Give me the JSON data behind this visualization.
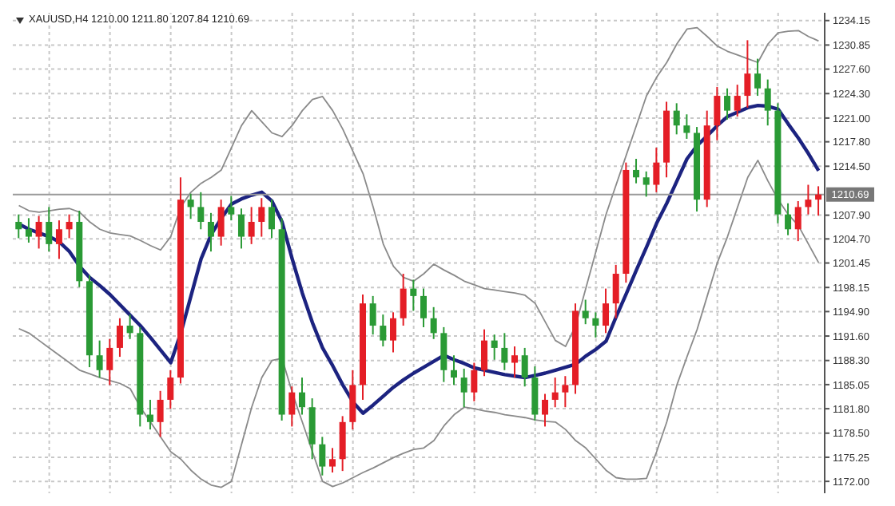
{
  "chart_data": {
    "type": "candlestick",
    "title": "XAUUSD,H4 1210.00 1211.80 1207.84 1210.69",
    "categories": [
      null,
      null,
      null,
      null,
      null,
      null,
      null,
      null,
      null,
      null,
      null,
      null,
      null,
      null,
      null,
      null,
      null,
      null,
      null,
      null,
      null,
      null,
      null,
      null,
      null,
      null,
      null,
      null,
      null,
      null,
      null,
      null,
      null,
      null,
      null,
      null,
      null,
      null,
      null,
      null,
      null,
      null,
      null,
      null,
      null,
      null,
      null,
      null,
      null,
      null,
      null,
      null,
      null,
      null,
      null,
      null,
      null,
      null,
      null,
      null,
      null,
      null,
      null,
      null,
      null,
      null,
      null,
      null,
      null,
      null,
      null,
      null,
      null,
      null,
      null,
      null,
      null,
      null,
      null,
      null
    ],
    "ohlc": [
      [
        1207,
        1208,
        1204.8,
        1206
      ],
      [
        1206,
        1207.5,
        1204.2,
        1205
      ],
      [
        1205,
        1207.8,
        1203.4,
        1207
      ],
      [
        1207,
        1209,
        1203,
        1204
      ],
      [
        1204,
        1207.2,
        1202,
        1206
      ],
      [
        1206,
        1208,
        1204.8,
        1207
      ],
      [
        1207,
        1208.5,
        1198.2,
        1199
      ],
      [
        1199,
        1199.8,
        1187.4,
        1189
      ],
      [
        1189,
        1191,
        1186,
        1187
      ],
      [
        1187,
        1191.2,
        1185,
        1190
      ],
      [
        1190,
        1194,
        1188.8,
        1193
      ],
      [
        1193,
        1194.5,
        1191.2,
        1192
      ],
      [
        1192,
        1192.8,
        1179.4,
        1181
      ],
      [
        1181,
        1183,
        1179,
        1180
      ],
      [
        1180,
        1184.2,
        1178,
        1183
      ],
      [
        1183,
        1187,
        1181.8,
        1186
      ],
      [
        1186,
        1213,
        1185.2,
        1210
      ],
      [
        1210,
        1210.8,
        1207.4,
        1209
      ],
      [
        1209,
        1211,
        1206,
        1207
      ],
      [
        1207,
        1208.2,
        1203,
        1205
      ],
      [
        1205,
        1210,
        1203.8,
        1209
      ],
      [
        1209,
        1210.5,
        1207.2,
        1208
      ],
      [
        1208,
        1208.8,
        1203.4,
        1205
      ],
      [
        1205,
        1209,
        1204,
        1207
      ],
      [
        1207,
        1210.2,
        1205,
        1209
      ],
      [
        1209,
        1210,
        1204.8,
        1206
      ],
      [
        1206,
        1207.5,
        1180.2,
        1181
      ],
      [
        1181,
        1184.8,
        1179.4,
        1184
      ],
      [
        1184,
        1186,
        1181,
        1182
      ],
      [
        1182,
        1183.2,
        1175,
        1177
      ],
      [
        1177,
        1178,
        1172.8,
        1174
      ],
      [
        1174,
        1176.5,
        1173.2,
        1175
      ],
      [
        1175,
        1180.8,
        1173.4,
        1180
      ],
      [
        1180,
        1187,
        1179,
        1185
      ],
      [
        1185,
        1197.2,
        1183,
        1196
      ],
      [
        1196,
        1197,
        1191.8,
        1193
      ],
      [
        1193,
        1194.5,
        1190.2,
        1191
      ],
      [
        1191,
        1194.8,
        1189.4,
        1194
      ],
      [
        1194,
        1200,
        1193,
        1198
      ],
      [
        1198,
        1199.2,
        1195,
        1197
      ],
      [
        1197,
        1198,
        1192.8,
        1194
      ],
      [
        1194,
        1195.5,
        1191.2,
        1192
      ],
      [
        1192,
        1192.8,
        1185.4,
        1187
      ],
      [
        1187,
        1189,
        1185,
        1186
      ],
      [
        1186,
        1187.2,
        1182,
        1184
      ],
      [
        1184,
        1188,
        1182.8,
        1187
      ],
      [
        1187,
        1192.5,
        1186.2,
        1191
      ],
      [
        1191,
        1191.8,
        1188.4,
        1190
      ],
      [
        1190,
        1192,
        1187,
        1188
      ],
      [
        1188,
        1190.2,
        1186,
        1189
      ],
      [
        1189,
        1190,
        1184.8,
        1186
      ],
      [
        1186,
        1187.5,
        1180.2,
        1181
      ],
      [
        1181,
        1183.8,
        1179.4,
        1183
      ],
      [
        1183,
        1186,
        1182,
        1184
      ],
      [
        1184,
        1186.2,
        1182,
        1185
      ],
      [
        1185,
        1196,
        1183.8,
        1195
      ],
      [
        1195,
        1196.5,
        1193.2,
        1194
      ],
      [
        1194,
        1194.8,
        1191.4,
        1193
      ],
      [
        1193,
        1198,
        1192,
        1196
      ],
      [
        1196,
        1201.2,
        1194,
        1200
      ],
      [
        1200,
        1215,
        1198.8,
        1214
      ],
      [
        1214,
        1215.5,
        1212.2,
        1213
      ],
      [
        1213,
        1213.8,
        1210.4,
        1212
      ],
      [
        1212,
        1217,
        1211,
        1215
      ],
      [
        1215,
        1223.2,
        1213,
        1222
      ],
      [
        1222,
        1223,
        1218.8,
        1220
      ],
      [
        1220,
        1221.5,
        1218.2,
        1219
      ],
      [
        1219,
        1219.8,
        1208.4,
        1210
      ],
      [
        1210,
        1222,
        1209,
        1220
      ],
      [
        1220,
        1225.2,
        1218,
        1224
      ],
      [
        1224,
        1225,
        1220.8,
        1222
      ],
      [
        1222,
        1225.5,
        1221.2,
        1224
      ],
      [
        1224,
        1231.5,
        1222.4,
        1227
      ],
      [
        1227,
        1229,
        1224,
        1225
      ],
      [
        1225,
        1226.2,
        1220,
        1222
      ],
      [
        1222,
        1223,
        1206.8,
        1208
      ],
      [
        1208,
        1209.5,
        1205.2,
        1206
      ],
      [
        1206,
        1209.8,
        1204.4,
        1209
      ],
      [
        1209,
        1212,
        1208,
        1210
      ],
      [
        1210,
        1211.8,
        1207.84,
        1210.69
      ]
    ],
    "colors": [
      "#2a9a35",
      "#2a9a35",
      "#e41e26",
      "#2a9a35",
      "#e41e26",
      "#e41e26",
      "#2a9a35",
      "#2a9a35",
      "#2a9a35",
      "#e41e26",
      "#e41e26",
      "#2a9a35",
      "#2a9a35",
      "#2a9a35",
      "#e41e26",
      "#e41e26",
      "#e41e26",
      "#2a9a35",
      "#2a9a35",
      "#2a9a35",
      "#e41e26",
      "#2a9a35",
      "#2a9a35",
      "#e41e26",
      "#e41e26",
      "#2a9a35",
      "#2a9a35",
      "#e41e26",
      "#2a9a35",
      "#2a9a35",
      "#2a9a35",
      "#e41e26",
      "#e41e26",
      "#e41e26",
      "#e41e26",
      "#2a9a35",
      "#2a9a35",
      "#e41e26",
      "#e41e26",
      "#2a9a35",
      "#2a9a35",
      "#2a9a35",
      "#2a9a35",
      "#2a9a35",
      "#2a9a35",
      "#e41e26",
      "#e41e26",
      "#2a9a35",
      "#2a9a35",
      "#e41e26",
      "#2a9a35",
      "#2a9a35",
      "#e41e26",
      "#e41e26",
      "#e41e26",
      "#e41e26",
      "#2a9a35",
      "#2a9a35",
      "#e41e26",
      "#e41e26",
      "#e41e26",
      "#2a9a35",
      "#2a9a35",
      "#e41e26",
      "#e41e26",
      "#2a9a35",
      "#2a9a35",
      "#2a9a35",
      "#e41e26",
      "#e41e26",
      "#2a9a35",
      "#e41e26",
      "#e41e26",
      "#2a9a35",
      "#2a9a35",
      "#2a9a35",
      "#2a9a35",
      "#e41e26",
      "#e41e26",
      "#e41e26"
    ],
    "series": [
      {
        "type": "line",
        "color": "#8a8a8a",
        "values": [
          1209.2,
          1208.5,
          1208.3,
          1208.5,
          1208.7,
          1208.8,
          1208.3,
          1207,
          1206,
          1205.5,
          1205.3,
          1205.1,
          1204.5,
          1203.8,
          1203.2,
          1205,
          1209,
          1211,
          1212.2,
          1213,
          1214,
          1217,
          1220,
          1222,
          1220.5,
          1219,
          1218.5,
          1220,
          1222,
          1223.5,
          1223.9,
          1222,
          1219.5,
          1216.5,
          1213.5,
          1209,
          1204,
          1201,
          1199.5,
          1199,
          1200,
          1201.3,
          1200.5,
          1199.8,
          1199,
          1198.5,
          1198,
          1197.8,
          1197.6,
          1197.4,
          1197.1,
          1196,
          1193.5,
          1191,
          1190.2,
          1193,
          1198,
          1203,
          1208,
          1212,
          1216,
          1220,
          1224,
          1226.5,
          1228.5,
          1231,
          1233,
          1233.2,
          1232,
          1230.7,
          1230,
          1229.5,
          1229,
          1228.5,
          1231,
          1232.5,
          1232.7,
          1232.8,
          1232,
          1231.4
        ]
      },
      {
        "type": "line",
        "color": "#8a8a8a",
        "values": [
          1192.6,
          1192,
          1191,
          1190,
          1189,
          1188,
          1187,
          1186.5,
          1186,
          1185.6,
          1185.2,
          1184.5,
          1182,
          1180,
          1178,
          1176,
          1175,
          1173.5,
          1172.3,
          1171.5,
          1171.2,
          1172,
          1177,
          1182,
          1186,
          1188.3,
          1188.6,
          1184,
          1180,
          1176,
          1172,
          1171.3,
          1171.8,
          1172.5,
          1173.2,
          1173.8,
          1174.5,
          1175.2,
          1175.8,
          1176.3,
          1176.5,
          1177.5,
          1179.5,
          1181,
          1182,
          1181.8,
          1181.5,
          1181.3,
          1181,
          1180.8,
          1180.6,
          1180.3,
          1180.1,
          1180,
          1179,
          1177.5,
          1176.5,
          1175,
          1173.5,
          1172.5,
          1172.3,
          1172.3,
          1172.4,
          1176,
          1180,
          1185,
          1188.8,
          1192.5,
          1197,
          1201.5,
          1205,
          1209,
          1213,
          1215.3,
          1212.5,
          1210,
          1208,
          1206.5,
          1204,
          1201.5
        ]
      },
      {
        "type": "line",
        "color": "#1c2380",
        "values": [
          1206.7,
          1206,
          1205.5,
          1205,
          1204.3,
          1203,
          1201,
          1199.5,
          1198.4,
          1197.2,
          1195.8,
          1194.4,
          1193,
          1191.4,
          1189.7,
          1188,
          1192,
          1197,
          1202,
          1205.3,
          1207.5,
          1209.4,
          1210.1,
          1210.6,
          1211,
          1209.8,
          1207,
          1202,
          1197.4,
          1193.4,
          1190,
          1187.6,
          1185,
          1182.7,
          1181.2,
          1182.3,
          1183.5,
          1184.7,
          1185.7,
          1186.6,
          1187.4,
          1188.2,
          1189,
          1188.4,
          1187.9,
          1187.3,
          1187,
          1186.7,
          1186.4,
          1186.2,
          1186,
          1186.3,
          1186.6,
          1187,
          1187.4,
          1187.8,
          1188.9,
          1189.8,
          1190.9,
          1194.2,
          1197.3,
          1200.5,
          1203.6,
          1206.8,
          1209.5,
          1212.5,
          1215.5,
          1217.3,
          1218.6,
          1220,
          1221.2,
          1221.8,
          1222.4,
          1222.7,
          1222.6,
          1222.2,
          1220.2,
          1218.3,
          1216.2,
          1213.9
        ]
      }
    ],
    "ylim": [
      1170.4,
      1235.2
    ],
    "yticks": [
      {
        "value": 1172,
        "label": "1172.00"
      },
      {
        "value": 1175.25,
        "label": "1175.25"
      },
      {
        "value": 1178.5,
        "label": "1178.50"
      },
      {
        "value": 1181.8,
        "label": "1181.80"
      },
      {
        "value": 1185.05,
        "label": "1185.05"
      },
      {
        "value": 1188.3,
        "label": "1188.30"
      },
      {
        "value": 1191.6,
        "label": "1191.60"
      },
      {
        "value": 1194.9,
        "label": "1194.90"
      },
      {
        "value": 1198.15,
        "label": "1198.15"
      },
      {
        "value": 1201.45,
        "label": "1201.45"
      },
      {
        "value": 1204.7,
        "label": "1204.70"
      },
      {
        "value": 1207.9,
        "label": "1207.90"
      },
      {
        "value": 1214.5,
        "label": "1214.50"
      },
      {
        "value": 1217.8,
        "label": "1217.80"
      },
      {
        "value": 1221,
        "label": "1221.00"
      },
      {
        "value": 1224.3,
        "label": "1224.30"
      },
      {
        "value": 1227.6,
        "label": "1227.60"
      },
      {
        "value": 1230.85,
        "label": "1230.85"
      },
      {
        "value": 1234.15,
        "label": "1234.15"
      }
    ],
    "ref_lines": [
      {
        "axis": "y",
        "value": 1210.69,
        "label": "1210.69",
        "color": "#9a9a9a"
      }
    ],
    "grid": true,
    "tick_labels": "y"
  }
}
